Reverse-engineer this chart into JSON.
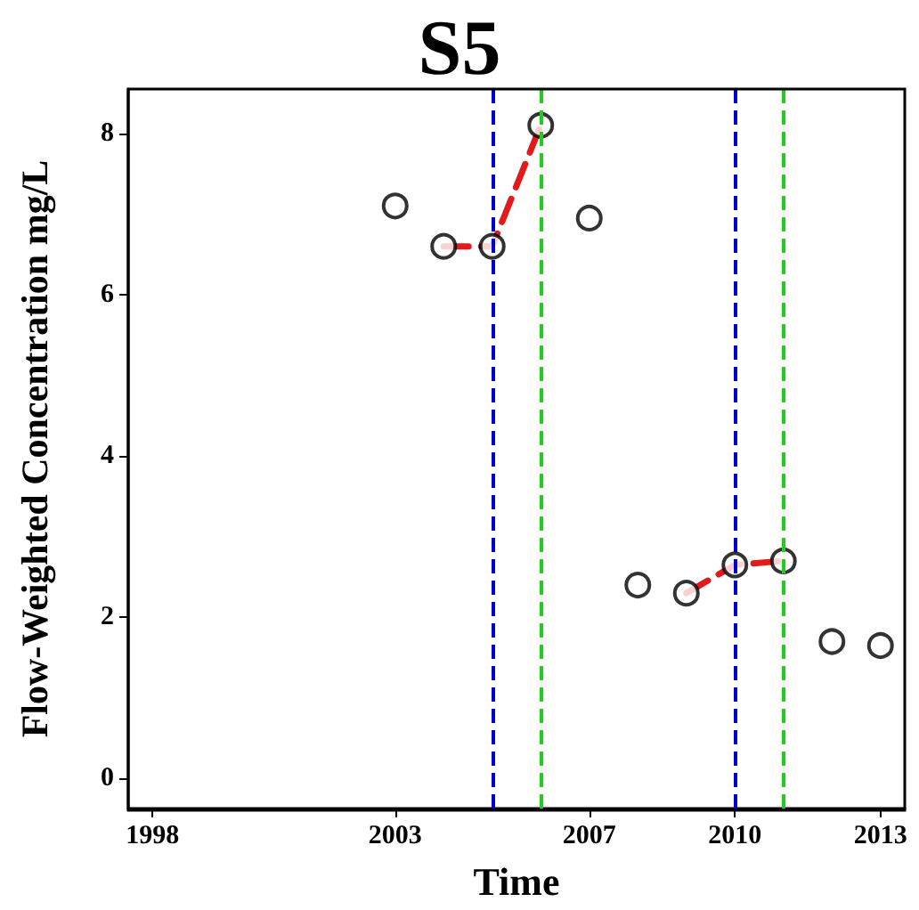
{
  "chart_data": {
    "type": "scatter",
    "title": "S5",
    "xlabel": "Time",
    "ylabel": "Flow-Weighted Concentration mg/L",
    "xlim": [
      1997.5,
      2013.5
    ],
    "xticks": [
      1998,
      2003,
      2007,
      2010,
      2013
    ],
    "ylim": [
      -0.37,
      8.55
    ],
    "yticks": [
      0,
      2,
      4,
      6,
      8
    ],
    "grid": false,
    "marker": "circle",
    "series": [
      {
        "color": "#000000",
        "x": [
          2003,
          2004,
          2005,
          2006,
          2007,
          2008,
          2009,
          2010,
          2011,
          2012,
          2013
        ],
        "values": [
          7.1,
          6.6,
          6.6,
          8.1,
          6.95,
          2.4,
          2.3,
          2.65,
          2.7,
          1.7,
          1.65
        ]
      },
      {
        "type": "line",
        "color": "#e31a1c",
        "line_style": "dashed",
        "marker": "none",
        "x": [
          2004,
          2005,
          2006,
          2007,
          2009,
          2010,
          2011
        ],
        "values": [
          6.6,
          6.6,
          8.1,
          null,
          2.3,
          2.65,
          2.7
        ]
      }
    ],
    "ref_lines": [
      {
        "axis": "x",
        "value": 2005,
        "color": "#0000cc",
        "line_style": "dashed"
      },
      {
        "axis": "x",
        "value": 2006,
        "color": "#22cc22",
        "line_style": "dashed"
      },
      {
        "axis": "x",
        "value": 2010,
        "color": "#0000cc",
        "line_style": "dashed"
      },
      {
        "axis": "x",
        "value": 2011,
        "color": "#22cc22",
        "line_style": "dashed"
      }
    ]
  }
}
